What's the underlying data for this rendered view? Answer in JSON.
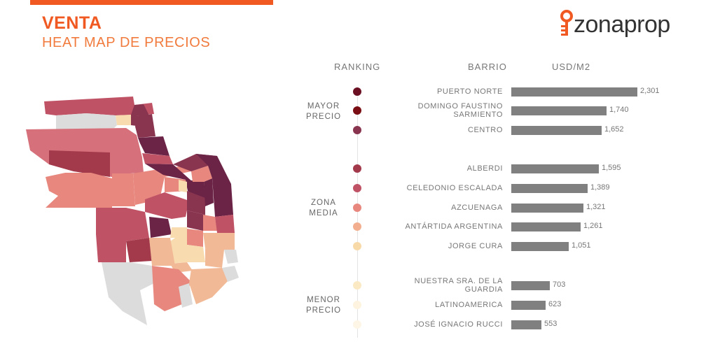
{
  "header": {
    "title": "VENTA",
    "subtitle": "HEAT MAP DE PRECIOS"
  },
  "logo": {
    "text": "zonaprop",
    "icon": "key-icon",
    "color": "#f05a22"
  },
  "columns": {
    "ranking": "RANKING",
    "barrio": "BARRIO",
    "usd": "USD/M2"
  },
  "groups": [
    {
      "label": [
        "MAYOR",
        "PRECIO"
      ]
    },
    {
      "label": [
        "ZONA",
        "MEDIA"
      ]
    },
    {
      "label": [
        "MENOR",
        "PRECIO"
      ]
    }
  ],
  "chart_data": {
    "type": "bar",
    "orientation": "horizontal",
    "title": "",
    "categories": [
      "PUERTO NORTE",
      "DOMINGO FAUSTINO SARMIENTO",
      "CENTRO",
      "ALBERDI",
      "CELEDONIO ESCALADA",
      "AZCUENAGA",
      "ANTÁRTIDA ARGENTINA",
      "JORGE CURA",
      "NUESTRA SRA. DE LA GUARDIA",
      "LATINOAMERICA",
      "JOSÉ IGNACIO RUCCI"
    ],
    "category_lines": [
      [
        "PUERTO NORTE"
      ],
      [
        "DOMINGO FAUSTINO",
        "SARMIENTO"
      ],
      [
        "CENTRO"
      ],
      [
        "ALBERDI"
      ],
      [
        "CELEDONIO ESCALADA"
      ],
      [
        "AZCUENAGA"
      ],
      [
        "ANTÁRTIDA ARGENTINA"
      ],
      [
        "JORGE CURA"
      ],
      [
        "NUESTRA SRA. DE LA",
        "GUARDIA"
      ],
      [
        "LATINOAMERICA"
      ],
      [
        "JOSÉ IGNACIO RUCCI"
      ]
    ],
    "values": [
      2301,
      1740,
      1652,
      1595,
      1389,
      1321,
      1261,
      1051,
      703,
      623,
      553
    ],
    "value_labels": [
      "2,301",
      "1,740",
      "1,652",
      "1,595",
      "1,389",
      "1,321",
      "1,261",
      "1,051",
      "703",
      "623",
      "553"
    ],
    "groups": [
      0,
      0,
      0,
      1,
      1,
      1,
      1,
      1,
      2,
      2,
      2
    ],
    "rank_colors": [
      "#6b1022",
      "#7a0e14",
      "#8a3550",
      "#a33a4c",
      "#c05266",
      "#e8877e",
      "#f2ae8e",
      "#f8d9a8",
      "#fbe9c4",
      "#fdf3de",
      "#fdf5e6"
    ],
    "bar_color": "#808080",
    "xlim": [
      0,
      2301
    ]
  },
  "map": {
    "colors": {
      "dark": "#6b2346",
      "plum": "#8a3550",
      "rose": "#c05266",
      "salmon": "#e8877e",
      "peach": "#f2b996",
      "cream": "#f8dcb0",
      "gray": "#dcdcdc"
    }
  }
}
